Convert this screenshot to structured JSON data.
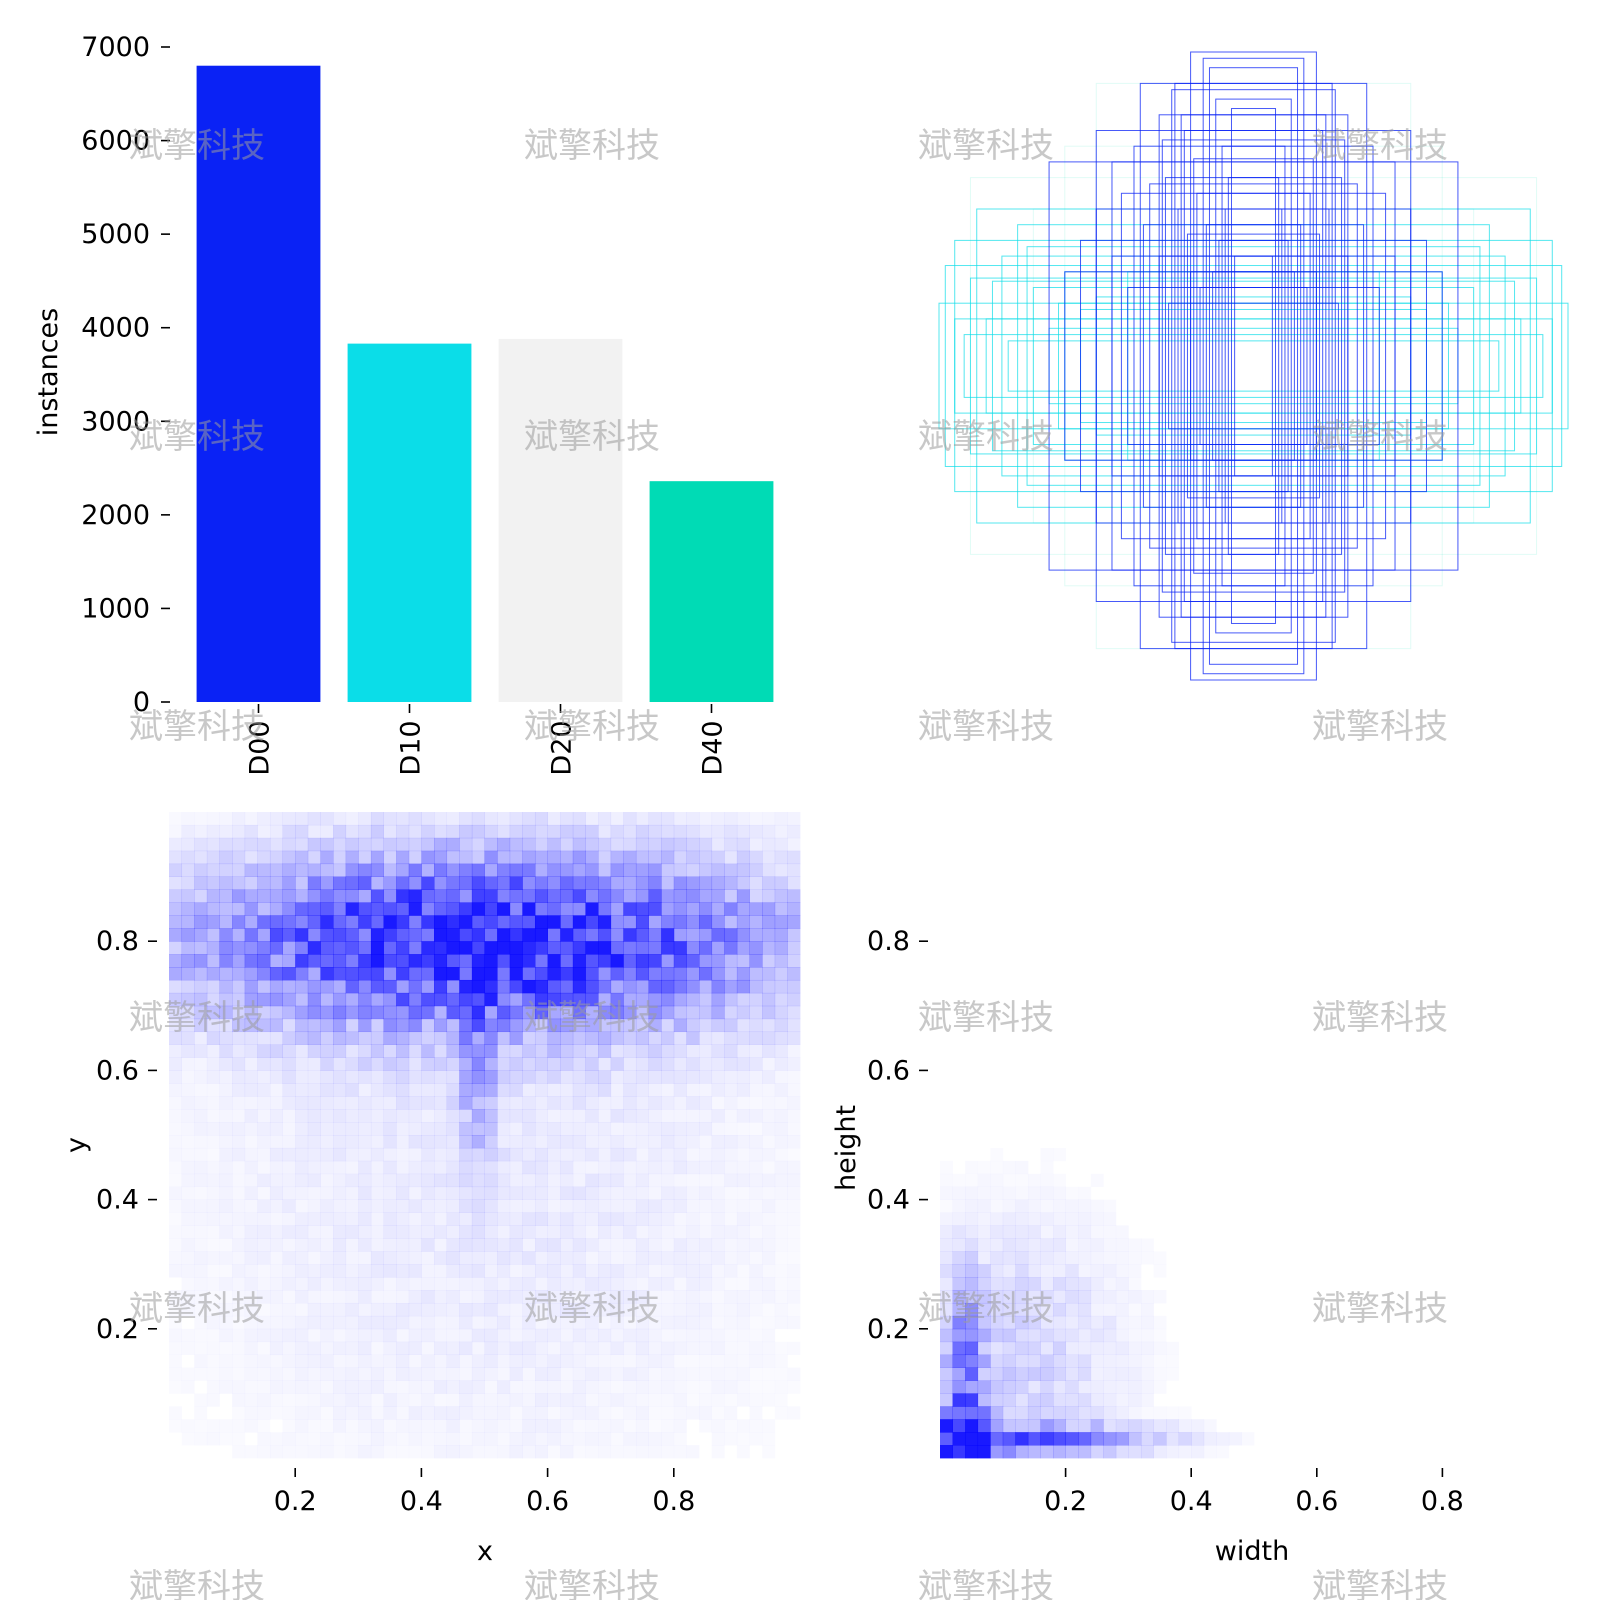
{
  "watermark_text": "斌擎科技",
  "colors": {
    "D00": "#0a22f5",
    "D10": "#0bdde8",
    "D20": "#f2f2f2",
    "D40": "#00dbb5",
    "heat": "#0000ff"
  },
  "chart_data": [
    {
      "id": "instances",
      "type": "bar",
      "categories": [
        "D00",
        "D10",
        "D20",
        "D40"
      ],
      "values": [
        6800,
        3830,
        3880,
        2360
      ],
      "ylabel": "instances",
      "xlabel": "",
      "ylim": [
        0,
        7000
      ],
      "yticks": [
        0,
        1000,
        2000,
        3000,
        4000,
        5000,
        6000,
        7000
      ],
      "grid": false
    },
    {
      "id": "box-overlay",
      "type": "diagram",
      "description_free": true,
      "layers": [
        {
          "class": "D40",
          "boxes": [
            [
              0.45,
              0.5
            ],
            [
              0.6,
              0.7
            ],
            [
              0.5,
              0.9
            ],
            [
              0.7,
              0.5
            ],
            [
              0.9,
              0.6
            ],
            [
              0.55,
              0.4
            ]
          ]
        },
        {
          "class": "D10",
          "boxes": [
            [
              0.95,
              0.4
            ],
            [
              0.8,
              0.35
            ],
            [
              1.0,
              0.2
            ],
            [
              0.7,
              0.25
            ],
            [
              0.85,
              0.15
            ],
            [
              0.6,
              0.3
            ],
            [
              0.75,
              0.45
            ],
            [
              0.9,
              0.28
            ],
            [
              0.5,
              0.22
            ],
            [
              0.65,
              0.12
            ],
            [
              0.92,
              0.1
            ],
            [
              0.78,
              0.08
            ],
            [
              0.55,
              0.18
            ],
            [
              0.4,
              0.3
            ],
            [
              0.98,
              0.32
            ],
            [
              0.88,
              0.5
            ],
            [
              0.72,
              0.38
            ],
            [
              0.62,
              0.2
            ],
            [
              0.83,
              0.27
            ],
            [
              0.95,
              0.15
            ]
          ]
        },
        {
          "class": "D00",
          "boxes": [
            [
              0.2,
              1.0
            ],
            [
              0.16,
              0.98
            ],
            [
              0.25,
              0.9
            ],
            [
              0.3,
              0.8
            ],
            [
              0.45,
              0.65
            ],
            [
              0.38,
              0.7
            ],
            [
              0.5,
              0.5
            ],
            [
              0.35,
              0.45
            ],
            [
              0.28,
              0.6
            ],
            [
              0.22,
              0.75
            ],
            [
              0.12,
              0.85
            ],
            [
              0.18,
              0.55
            ],
            [
              0.42,
              0.55
            ],
            [
              0.55,
              0.4
            ],
            [
              0.65,
              0.65
            ],
            [
              0.3,
              0.35
            ],
            [
              0.14,
              0.95
            ],
            [
              0.1,
              0.7
            ],
            [
              0.24,
              0.5
            ],
            [
              0.08,
              0.6
            ],
            [
              0.2,
              0.3
            ],
            [
              0.6,
              0.3
            ],
            [
              0.4,
              0.25
            ],
            [
              0.15,
              0.45
            ],
            [
              0.5,
              0.75
            ],
            [
              0.26,
              0.88
            ],
            [
              0.19,
              0.66
            ],
            [
              0.33,
              0.58
            ],
            [
              0.11,
              0.4
            ],
            [
              0.07,
              0.82
            ],
            [
              0.36,
              0.9
            ],
            [
              0.45,
              0.35
            ],
            [
              0.17,
              0.25
            ],
            [
              0.29,
              0.72
            ],
            [
              0.09,
              0.5
            ],
            [
              0.13,
              0.3
            ],
            [
              0.21,
              0.42
            ],
            [
              0.27,
              0.2
            ],
            [
              0.06,
              0.35
            ],
            [
              0.23,
              0.8
            ]
          ]
        }
      ]
    },
    {
      "id": "xy-heatmap",
      "type": "heatmap",
      "xlabel": "x",
      "ylabel": "y",
      "xlim": [
        0,
        1
      ],
      "ylim": [
        0,
        1
      ],
      "xticks": [
        0.2,
        0.4,
        0.6,
        0.8
      ],
      "yticks": [
        0.2,
        0.4,
        0.6,
        0.8
      ],
      "density_peaks": [
        {
          "x": 0.5,
          "y": 0.8,
          "sx": 0.32,
          "sy": 0.09,
          "w": 1.0
        },
        {
          "x": 0.49,
          "y": 0.6,
          "sx": 0.02,
          "sy": 0.1,
          "w": 0.35
        },
        {
          "x": 0.5,
          "y": 0.45,
          "sx": 0.35,
          "sy": 0.35,
          "w": 0.1
        }
      ]
    },
    {
      "id": "wh-heatmap",
      "type": "heatmap",
      "xlabel": "width",
      "ylabel": "height",
      "xlim": [
        0,
        1
      ],
      "ylim": [
        0,
        1
      ],
      "xticks": [
        0.2,
        0.4,
        0.6,
        0.8
      ],
      "yticks": [
        0.2,
        0.4,
        0.6,
        0.8
      ],
      "density_peaks": [
        {
          "x": 0.04,
          "y": 0.03,
          "sx": 0.03,
          "sy": 0.03,
          "w": 1.0
        },
        {
          "x": 0.15,
          "y": 0.03,
          "sx": 0.14,
          "sy": 0.015,
          "w": 0.55
        },
        {
          "x": 0.04,
          "y": 0.12,
          "sx": 0.02,
          "sy": 0.1,
          "w": 0.5
        },
        {
          "x": 0.12,
          "y": 0.15,
          "sx": 0.12,
          "sy": 0.15,
          "w": 0.2
        }
      ]
    }
  ]
}
